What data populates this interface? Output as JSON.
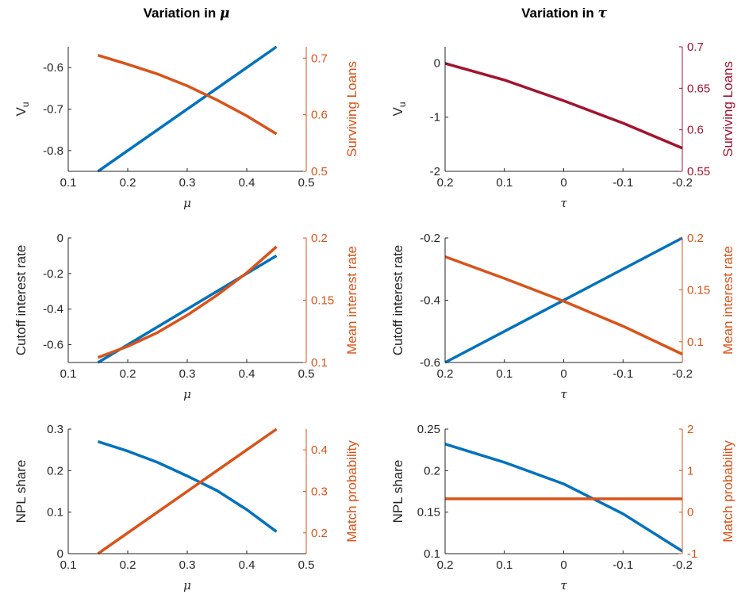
{
  "column_titles": [
    {
      "text": "Variation in ",
      "symbol": "μ"
    },
    {
      "text": "Variation in ",
      "symbol": "τ"
    }
  ],
  "colors": {
    "blue": "#0072BD",
    "orange": "#D95319",
    "crimson": "#A2142F",
    "axis": "#262626"
  },
  "chart_data": [
    {
      "type": "line",
      "xlabel": "μ",
      "xlim": [
        0.1,
        0.5
      ],
      "xticks": [
        0.1,
        0.2,
        0.3,
        0.4,
        0.5
      ],
      "left_axis": {
        "label": "V",
        "label_subscript": "u",
        "color": "#262626",
        "ylim": [
          -0.85,
          -0.55
        ],
        "ticks": [
          -0.8,
          -0.7,
          -0.6
        ]
      },
      "right_axis": {
        "label": "Surviving Loans",
        "color": "#D95319",
        "ylim": [
          0.5,
          0.72
        ],
        "ticks": [
          0.5,
          0.6,
          0.7
        ]
      },
      "series": [
        {
          "axis": "left",
          "color": "#0072BD",
          "x": [
            0.15,
            0.45
          ],
          "y": [
            -0.85,
            -0.55
          ]
        },
        {
          "axis": "right",
          "color": "#D95319",
          "x": [
            0.15,
            0.2,
            0.25,
            0.3,
            0.35,
            0.4,
            0.45
          ],
          "y": [
            0.705,
            0.689,
            0.672,
            0.651,
            0.626,
            0.598,
            0.566
          ]
        }
      ]
    },
    {
      "type": "line",
      "xlabel": "τ",
      "xlim": [
        0.2,
        -0.2
      ],
      "xticks": [
        0.2,
        0.1,
        0,
        -0.1,
        -0.2
      ],
      "left_axis": {
        "label": "V",
        "label_subscript": "u",
        "color": "#262626",
        "ylim": [
          -2,
          0.3
        ],
        "ticks": [
          -2,
          -1,
          0
        ]
      },
      "right_axis": {
        "label": "Surviving Loans",
        "color": "#A2142F",
        "ylim": [
          0.55,
          0.7
        ],
        "ticks": [
          0.55,
          0.6,
          0.65,
          0.7
        ]
      },
      "series": [
        {
          "axis": "right",
          "color": "#A2142F",
          "x": [
            0.2,
            0.1,
            0,
            -0.1,
            -0.2
          ],
          "y": [
            0.68,
            0.66,
            0.635,
            0.608,
            0.578
          ]
        }
      ]
    },
    {
      "type": "line",
      "xlabel": "μ",
      "xlim": [
        0.1,
        0.5
      ],
      "xticks": [
        0.1,
        0.2,
        0.3,
        0.4,
        0.5
      ],
      "left_axis": {
        "label": "Cutoff interest rate",
        "color": "#262626",
        "ylim": [
          -0.7,
          0
        ],
        "ticks": [
          -0.6,
          -0.4,
          -0.2,
          0
        ]
      },
      "right_axis": {
        "label": "Mean interest rate",
        "color": "#D95319",
        "ylim": [
          0.1,
          0.2
        ],
        "ticks": [
          0.1,
          0.15,
          0.2
        ]
      },
      "series": [
        {
          "axis": "left",
          "color": "#0072BD",
          "x": [
            0.15,
            0.45
          ],
          "y": [
            -0.7,
            -0.1
          ]
        },
        {
          "axis": "right",
          "color": "#D95319",
          "x": [
            0.15,
            0.2,
            0.25,
            0.3,
            0.35,
            0.4,
            0.45
          ],
          "y": [
            0.104,
            0.113,
            0.124,
            0.138,
            0.154,
            0.172,
            0.193
          ]
        }
      ]
    },
    {
      "type": "line",
      "xlabel": "τ",
      "xlim": [
        0.2,
        -0.2
      ],
      "xticks": [
        0.2,
        0.1,
        0,
        -0.1,
        -0.2
      ],
      "left_axis": {
        "label": "Cutoff interest rate",
        "color": "#262626",
        "ylim": [
          -0.6,
          -0.2
        ],
        "ticks": [
          -0.6,
          -0.4,
          -0.2
        ]
      },
      "right_axis": {
        "label": "Mean interest rate",
        "color": "#D95319",
        "ylim": [
          0.08,
          0.2
        ],
        "ticks": [
          0.1,
          0.15,
          0.2
        ]
      },
      "series": [
        {
          "axis": "left",
          "color": "#0072BD",
          "x": [
            0.2,
            -0.2
          ],
          "y": [
            -0.6,
            -0.2
          ]
        },
        {
          "axis": "right",
          "color": "#D95319",
          "x": [
            0.2,
            0.1,
            0,
            -0.1,
            -0.2
          ],
          "y": [
            0.182,
            0.161,
            0.139,
            0.115,
            0.088
          ]
        }
      ]
    },
    {
      "type": "line",
      "xlabel": "μ",
      "xlim": [
        0.1,
        0.5
      ],
      "xticks": [
        0.1,
        0.2,
        0.3,
        0.4,
        0.5
      ],
      "left_axis": {
        "label": "NPL share",
        "color": "#262626",
        "ylim": [
          0,
          0.3
        ],
        "ticks": [
          0,
          0.1,
          0.2,
          0.3
        ]
      },
      "right_axis": {
        "label": "Match probability",
        "color": "#D95319",
        "ylim": [
          0.15,
          0.45
        ],
        "ticks": [
          0.2,
          0.3,
          0.4
        ]
      },
      "series": [
        {
          "axis": "left",
          "color": "#0072BD",
          "x": [
            0.15,
            0.2,
            0.25,
            0.3,
            0.35,
            0.4,
            0.45
          ],
          "y": [
            0.27,
            0.247,
            0.22,
            0.187,
            0.152,
            0.106,
            0.053
          ]
        },
        {
          "axis": "right",
          "color": "#D95319",
          "x": [
            0.15,
            0.45
          ],
          "y": [
            0.15,
            0.45
          ]
        }
      ]
    },
    {
      "type": "line",
      "xlabel": "τ",
      "xlim": [
        0.2,
        -0.2
      ],
      "xticks": [
        0.2,
        0.1,
        0,
        -0.1,
        -0.2
      ],
      "left_axis": {
        "label": "NPL share",
        "color": "#262626",
        "ylim": [
          0.1,
          0.25
        ],
        "ticks": [
          0.1,
          0.15,
          0.2,
          0.25
        ]
      },
      "right_axis": {
        "label": "Match probability",
        "color": "#D95319",
        "ylim": [
          -1,
          2
        ],
        "ticks": [
          -1,
          0,
          1,
          2
        ]
      },
      "series": [
        {
          "axis": "left",
          "color": "#0072BD",
          "x": [
            0.2,
            0.1,
            0,
            -0.1,
            -0.2
          ],
          "y": [
            0.232,
            0.21,
            0.184,
            0.148,
            0.103
          ]
        },
        {
          "axis": "right",
          "color": "#D95319",
          "x": [
            0.2,
            -0.2
          ],
          "y": [
            0.32,
            0.32
          ]
        }
      ]
    }
  ]
}
